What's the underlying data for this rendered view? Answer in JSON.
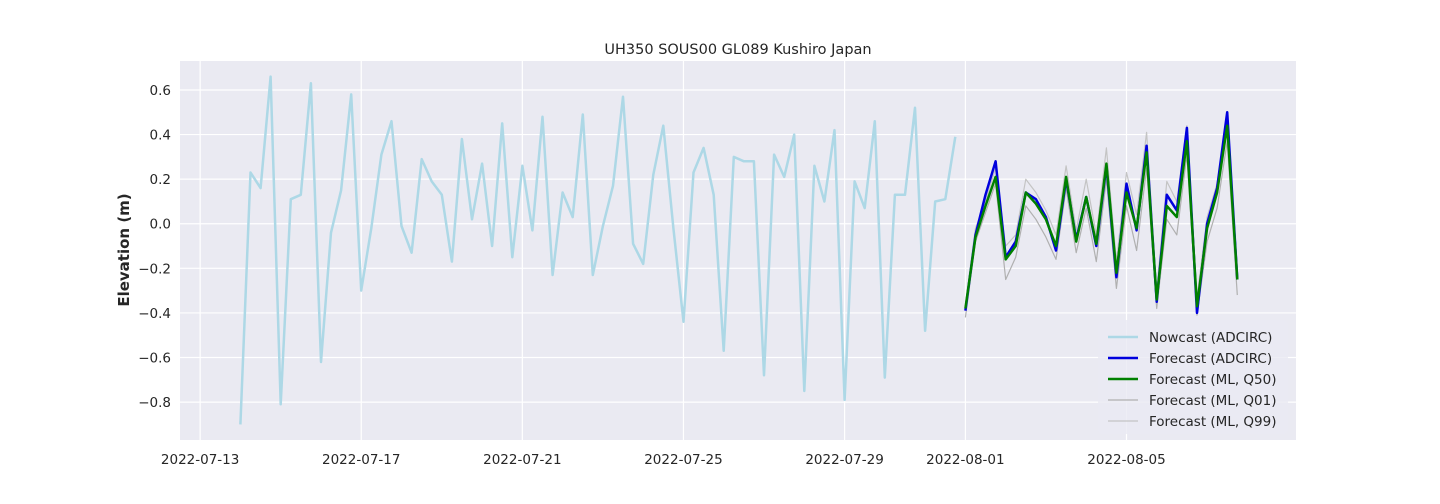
{
  "chart_data": {
    "type": "line",
    "title": "UH350 SOUS00 GL089 Kushiro Japan",
    "xlabel": "",
    "ylabel": "Elevation (m)",
    "x_axis": {
      "type": "date",
      "range": [
        "2022-07-12T12:00",
        "2022-08-09T05:00"
      ],
      "ticks": [
        "2022-07-13",
        "2022-07-17",
        "2022-07-21",
        "2022-07-25",
        "2022-07-29",
        "2022-08-01",
        "2022-08-05"
      ]
    },
    "y_axis": {
      "range": [
        -0.97,
        0.73
      ],
      "ticks": [
        -0.8,
        -0.6,
        -0.4,
        -0.2,
        0.0,
        0.2,
        0.4,
        0.6
      ],
      "tick_labels": [
        "−0.8",
        "−0.6",
        "−0.4",
        "−0.2",
        "0.0",
        "0.2",
        "0.4",
        "0.6"
      ]
    },
    "grid": true,
    "legend_position": "lower-right",
    "series": [
      {
        "name": "Nowcast (ADCIRC)",
        "color": "#add8e6",
        "x_start": "2022-07-14T00:00",
        "x_step_hours": 6,
        "values": [
          -0.9,
          0.23,
          0.16,
          0.66,
          -0.81,
          0.11,
          0.13,
          0.63,
          -0.62,
          -0.04,
          0.15,
          0.58,
          -0.3,
          -0.02,
          0.31,
          0.46,
          -0.01,
          -0.13,
          0.29,
          0.19,
          0.13,
          -0.17,
          0.38,
          0.02,
          0.27,
          -0.1,
          0.45,
          -0.15,
          0.26,
          -0.03,
          0.48,
          -0.23,
          0.14,
          0.03,
          0.49,
          -0.23,
          -0.01,
          0.17,
          0.57,
          -0.09,
          -0.18,
          0.22,
          0.44,
          -0.02,
          -0.44,
          0.23,
          0.34,
          0.13,
          -0.57,
          0.3,
          0.28,
          0.28,
          -0.68,
          0.31,
          0.21,
          0.4,
          -0.75,
          0.26,
          0.1,
          0.42,
          -0.79,
          0.19,
          0.07,
          0.46,
          -0.69,
          0.13,
          0.13,
          0.52,
          -0.48,
          0.1,
          0.11,
          0.39
        ]
      },
      {
        "name": "Forecast (ADCIRC)",
        "color": "#0000dd",
        "x_start": "2022-08-01T00:00",
        "x_step_hours": 6,
        "values": [
          -0.39,
          -0.05,
          0.13,
          0.28,
          -0.15,
          -0.08,
          0.14,
          0.11,
          0.03,
          -0.12,
          0.2,
          -0.07,
          0.12,
          -0.1,
          0.26,
          -0.24,
          0.18,
          -0.03,
          0.35,
          -0.35,
          0.13,
          0.06,
          0.43,
          -0.4,
          0.0,
          0.16,
          0.5,
          -0.25
        ]
      },
      {
        "name": "Forecast (ML, Q50)",
        "color": "#008000",
        "x_start": "2022-08-01T00:00",
        "x_step_hours": 6,
        "values": [
          -0.38,
          -0.06,
          0.08,
          0.21,
          -0.16,
          -0.1,
          0.14,
          0.09,
          0.02,
          -0.1,
          0.21,
          -0.08,
          0.12,
          -0.09,
          0.27,
          -0.22,
          0.14,
          -0.02,
          0.32,
          -0.34,
          0.08,
          0.03,
          0.37,
          -0.37,
          -0.02,
          0.14,
          0.44,
          -0.25
        ]
      },
      {
        "name": "Forecast (ML, Q01)",
        "color": "#b0b0b0",
        "x_start": "2022-08-01T00:00",
        "x_step_hours": 6,
        "values": [
          -0.42,
          -0.08,
          0.05,
          0.18,
          -0.25,
          -0.15,
          0.08,
          0.02,
          -0.06,
          -0.16,
          0.16,
          -0.13,
          0.07,
          -0.17,
          0.2,
          -0.29,
          0.08,
          -0.12,
          0.25,
          -0.38,
          0.02,
          -0.05,
          0.31,
          -0.41,
          -0.08,
          0.07,
          0.37,
          -0.32
        ]
      },
      {
        "name": "Forecast (ML, Q99)",
        "color": "#c4c4c4",
        "x_start": "2022-08-01T00:00",
        "x_step_hours": 6,
        "values": [
          -0.36,
          -0.02,
          0.1,
          0.25,
          -0.1,
          -0.05,
          0.2,
          0.14,
          0.06,
          -0.05,
          0.26,
          -0.03,
          0.2,
          -0.05,
          0.34,
          -0.17,
          0.23,
          0.04,
          0.41,
          -0.3,
          0.19,
          0.1,
          0.44,
          -0.33,
          0.03,
          0.18,
          0.47,
          -0.2
        ]
      }
    ]
  }
}
